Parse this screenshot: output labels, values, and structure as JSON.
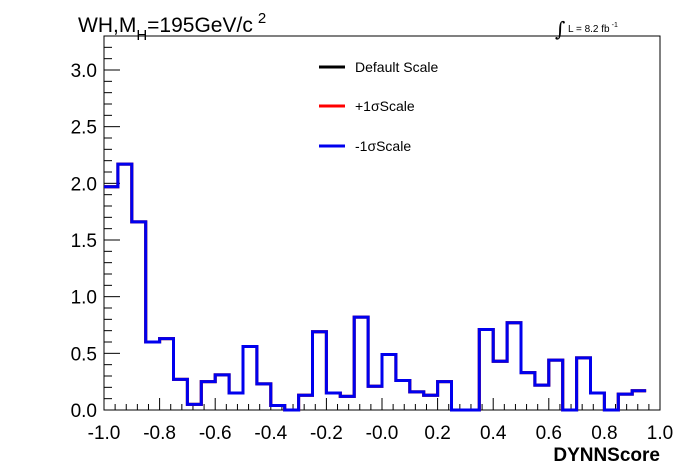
{
  "chart_data": {
    "type": "line",
    "title_main": "WH,M",
    "title_sub": "H",
    "title_rest": "=195GeV/c",
    "title_sup": "2",
    "lumi_prefix": "L = 8.2 fb",
    "lumi_sup": "-1",
    "xlabel": "DYNNScore",
    "ylabel": "",
    "xlim": [
      -1.0,
      1.0
    ],
    "ylim": [
      0.0,
      3.3
    ],
    "x_ticks": [
      "-1.0",
      "-0.8",
      "-0.6",
      "-0.4",
      "-0.2",
      "-0.0",
      "0.2",
      "0.4",
      "0.6",
      "0.8",
      "1.0"
    ],
    "y_ticks": [
      "0.0",
      "0.5",
      "1.0",
      "1.5",
      "2.0",
      "2.5",
      "3.0"
    ],
    "legend_position": "top-center",
    "grid": false,
    "bin_edges_start": -1.0,
    "bin_width": 0.05,
    "series": [
      {
        "name": "Default Scale",
        "color": "#000000",
        "values": [
          1.97,
          2.17,
          1.66,
          0.6,
          0.63,
          0.27,
          0.05,
          0.25,
          0.31,
          0.15,
          0.56,
          0.23,
          0.04,
          0.0,
          0.13,
          0.69,
          0.15,
          0.12,
          0.82,
          0.21,
          0.49,
          0.26,
          0.16,
          0.13,
          0.25,
          0.0,
          0.0,
          0.71,
          0.43,
          0.77,
          0.33,
          0.22,
          0.44,
          0.0,
          0.46,
          0.15,
          0.0,
          0.14,
          0.17
        ]
      },
      {
        "name": "+1σScale",
        "color": "#ff0000",
        "values": [
          1.97,
          2.17,
          1.66,
          0.6,
          0.63,
          0.27,
          0.05,
          0.25,
          0.31,
          0.15,
          0.56,
          0.23,
          0.04,
          0.0,
          0.13,
          0.69,
          0.15,
          0.12,
          0.82,
          0.21,
          0.49,
          0.26,
          0.16,
          0.13,
          0.25,
          0.0,
          0.0,
          0.71,
          0.43,
          0.77,
          0.33,
          0.22,
          0.44,
          0.0,
          0.46,
          0.15,
          0.0,
          0.14,
          0.17
        ]
      },
      {
        "name": "-1σScale",
        "color": "#0000ee",
        "values": [
          1.97,
          2.17,
          1.66,
          0.6,
          0.63,
          0.27,
          0.05,
          0.25,
          0.31,
          0.15,
          0.56,
          0.23,
          0.04,
          0.0,
          0.13,
          0.69,
          0.15,
          0.12,
          0.82,
          0.21,
          0.49,
          0.26,
          0.16,
          0.13,
          0.25,
          0.0,
          0.0,
          0.71,
          0.43,
          0.77,
          0.33,
          0.22,
          0.44,
          0.0,
          0.46,
          0.15,
          0.0,
          0.14,
          0.17
        ]
      }
    ]
  }
}
